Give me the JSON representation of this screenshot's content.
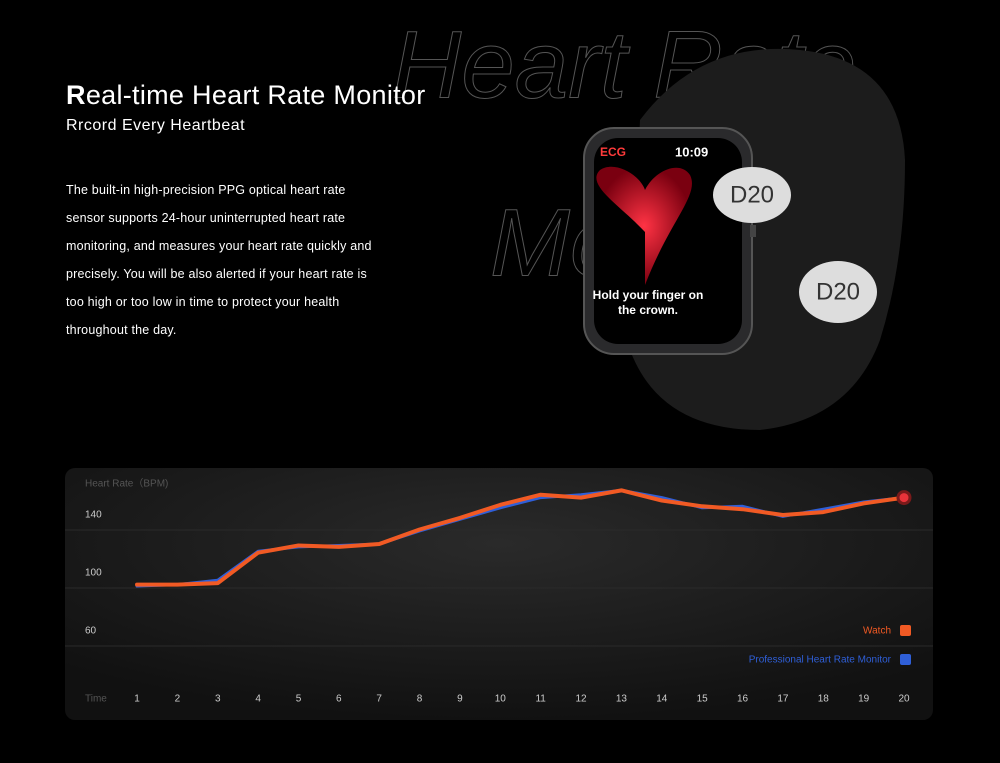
{
  "header": {
    "title": "Real-time Heart Rate Monitor",
    "subtitle": "Rrcord Every Heartbeat",
    "body": "The built-in high-precision PPG optical heart rate sensor supports 24-hour uninterrupted heart rate monitoring, and measures your heart rate quickly and precisely. You will be also alerted if your heart rate is too high or too low in time to protect your health throughout the day.",
    "watermark": [
      "Heart Rate",
      "Monitor"
    ]
  },
  "watch": {
    "app": "ECG",
    "time": "10:09",
    "prompt": [
      "Hold your finger on",
      "the crown."
    ],
    "badges": [
      "D20",
      "D20"
    ]
  },
  "chart_data": {
    "type": "line",
    "y_label": "Heart Rate（BPM)",
    "x_label": "Time",
    "categories": [
      "1",
      "2",
      "3",
      "4",
      "5",
      "6",
      "7",
      "8",
      "9",
      "10",
      "11",
      "12",
      "13",
      "14",
      "15",
      "16",
      "17",
      "18",
      "19",
      "20"
    ],
    "series": [
      {
        "name": "Watch",
        "color": "#f15a24",
        "values": [
          92,
          92,
          93,
          114,
          119,
          118,
          120,
          130,
          138,
          147,
          154,
          152,
          157,
          150,
          146,
          144,
          140,
          142,
          148,
          152
        ]
      },
      {
        "name": "Professional Heart Rate Monitor",
        "color": "#2f5fd8",
        "values": [
          91,
          92,
          95,
          115,
          118,
          119,
          120,
          129,
          137,
          145,
          152,
          154,
          157,
          152,
          145,
          146,
          139,
          144,
          149,
          152
        ]
      }
    ],
    "ylim": [
      40,
      170
    ],
    "yticks": [
      60,
      100,
      140
    ],
    "legend": "lower-right"
  }
}
